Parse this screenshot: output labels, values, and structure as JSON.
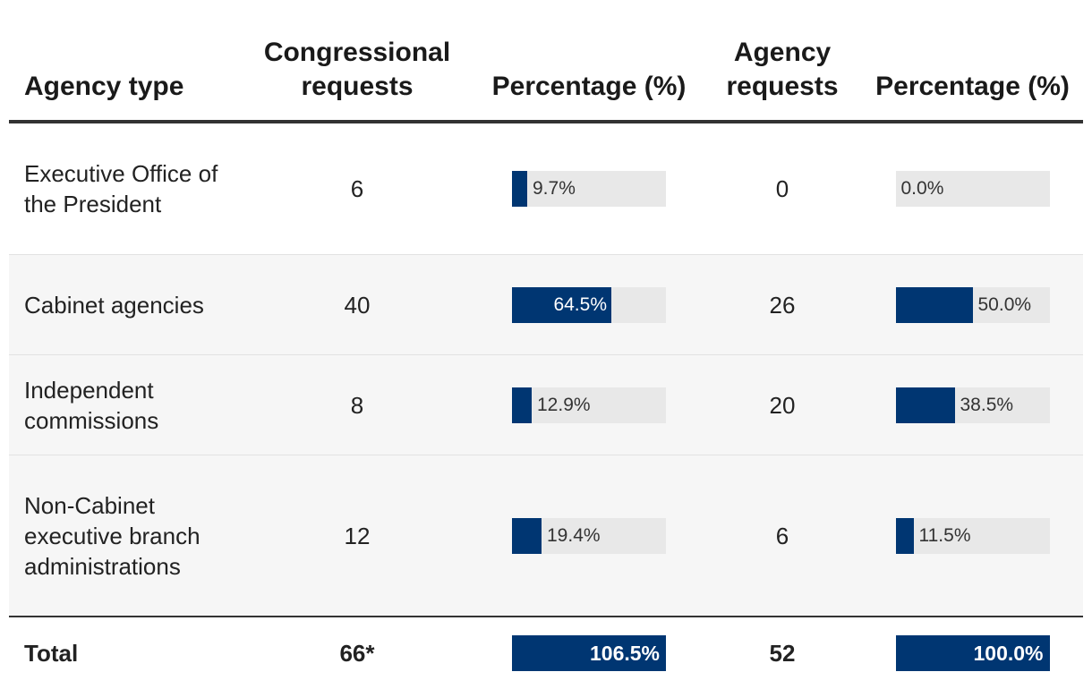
{
  "colors": {
    "bar_fill": "#003672",
    "bar_track": "#e8e8e8",
    "row_alt": "#f6f6f6",
    "rule": "#333333"
  },
  "headers": {
    "agency_type": "Agency type",
    "congressional_requests": "Congressional requests",
    "percentage_1": "Percentage (%)",
    "agency_requests": "Agency requests",
    "percentage_2": "Percentage (%)"
  },
  "rows": [
    {
      "agency_type": "Executive Office of the President",
      "congressional_requests": "6",
      "cong_pct": 9.7,
      "cong_pct_label": "9.7%",
      "agency_requests": "0",
      "agency_pct": 0.0,
      "agency_pct_label": "0.0%"
    },
    {
      "agency_type": "Cabinet agencies",
      "congressional_requests": "40",
      "cong_pct": 64.5,
      "cong_pct_label": "64.5%",
      "agency_requests": "26",
      "agency_pct": 50.0,
      "agency_pct_label": "50.0%"
    },
    {
      "agency_type": "Independent commissions",
      "congressional_requests": "8",
      "cong_pct": 12.9,
      "cong_pct_label": "12.9%",
      "agency_requests": "20",
      "agency_pct": 38.5,
      "agency_pct_label": "38.5%"
    },
    {
      "agency_type": "Non-Cabinet executive branch administrations",
      "congressional_requests": "12",
      "cong_pct": 19.4,
      "cong_pct_label": "19.4%",
      "agency_requests": "6",
      "agency_pct": 11.5,
      "agency_pct_label": "11.5%"
    }
  ],
  "total": {
    "label": "Total",
    "congressional_requests": "66*",
    "cong_pct": 106.5,
    "cong_pct_label": "106.5%",
    "agency_requests": "52",
    "agency_pct": 100.0,
    "agency_pct_label": "100.0%"
  },
  "chart_data": {
    "type": "table",
    "columns": [
      "Agency type",
      "Congressional requests",
      "Percentage (%)",
      "Agency requests",
      "Percentage (%)"
    ],
    "categories": [
      "Executive Office of the President",
      "Cabinet agencies",
      "Independent commissions",
      "Non-Cabinet executive branch administrations",
      "Total"
    ],
    "series": [
      {
        "name": "Congressional requests",
        "values": [
          6,
          40,
          8,
          12,
          66
        ]
      },
      {
        "name": "Percentage (%)",
        "values": [
          9.7,
          64.5,
          12.9,
          19.4,
          106.5
        ]
      },
      {
        "name": "Agency requests",
        "values": [
          0,
          26,
          20,
          6,
          52
        ]
      },
      {
        "name": "Percentage (%)",
        "values": [
          0.0,
          50.0,
          38.5,
          11.5,
          100.0
        ]
      }
    ]
  }
}
